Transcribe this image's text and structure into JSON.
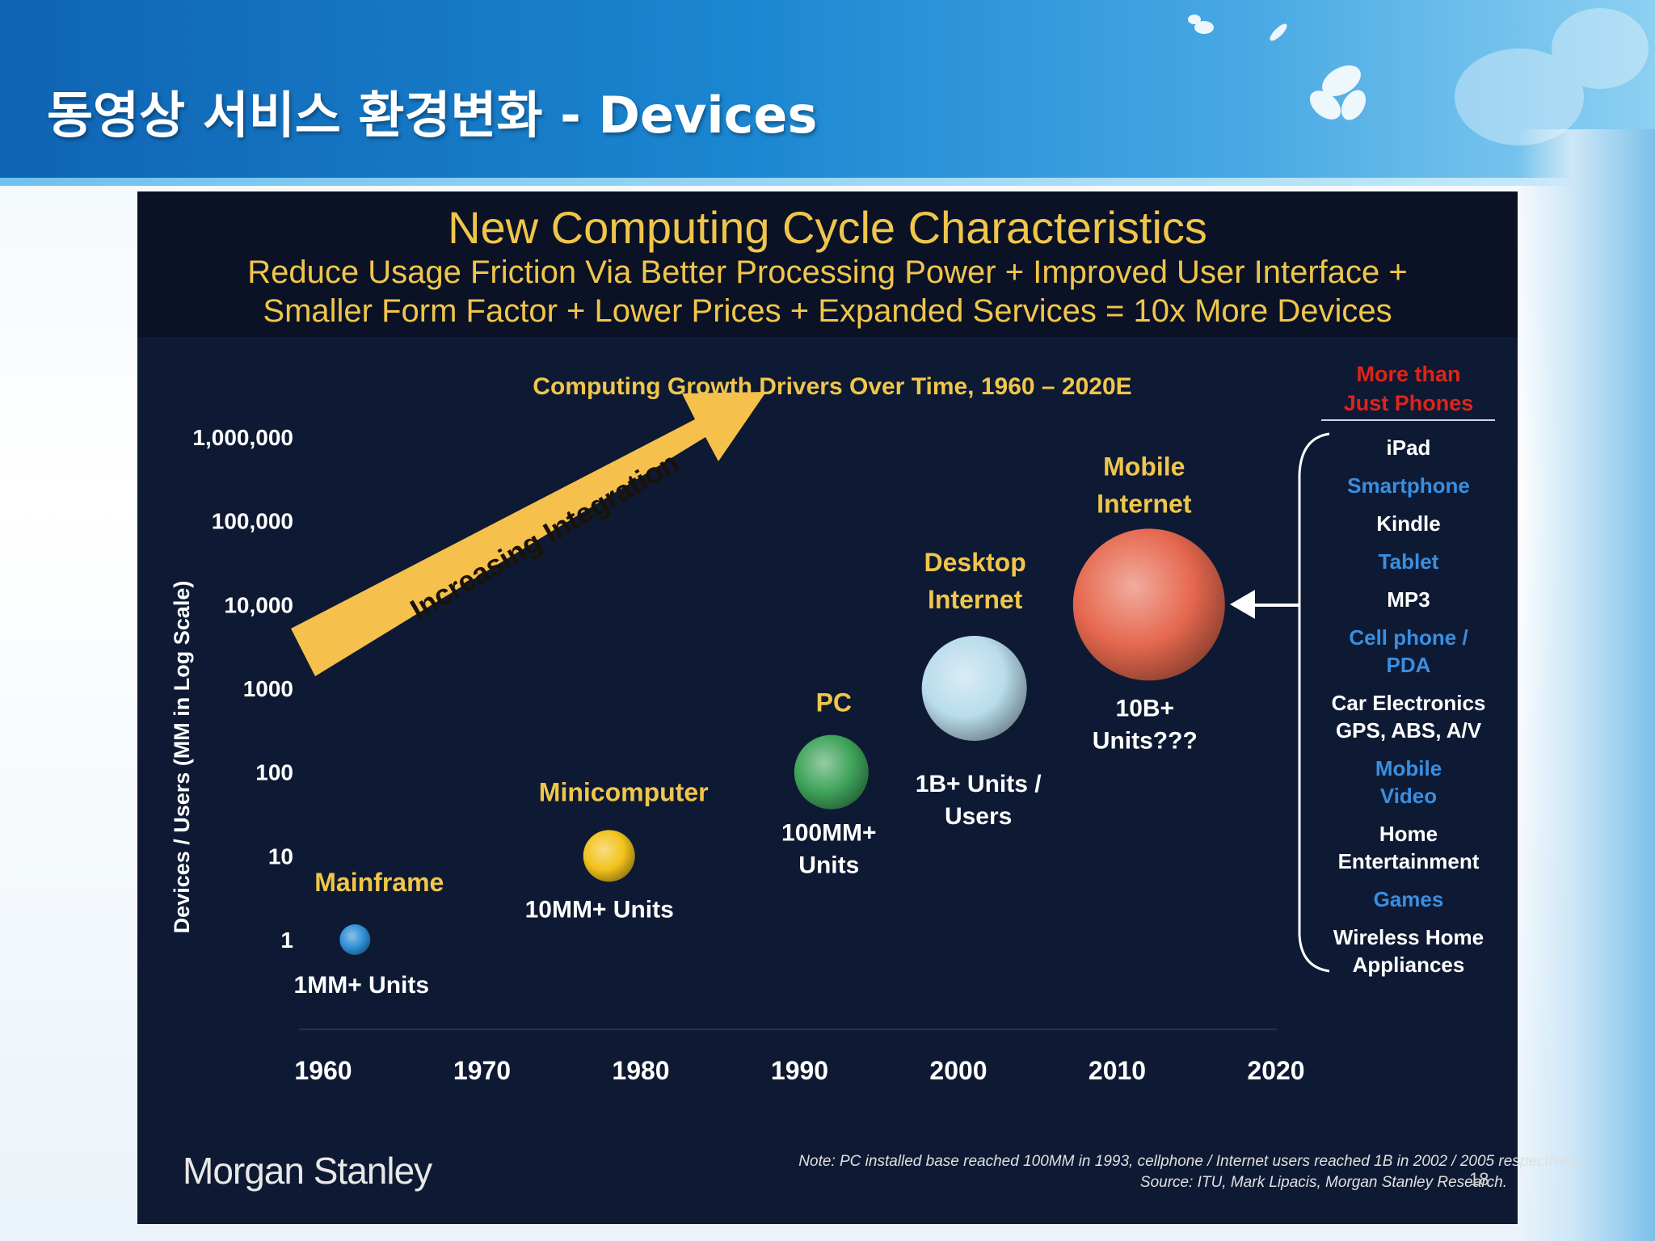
{
  "slide_title": "동영상 서비스 환경변화 - Devices",
  "chart_data": {
    "type": "scatter",
    "title": "New Computing Cycle Characteristics",
    "subtitle_lines": [
      "Reduce Usage Friction Via Better Processing Power + Improved User Interface +",
      "Smaller Form Factor + Lower Prices + Expanded Services = 10x More Devices"
    ],
    "chart_title": "Computing Growth Drivers Over Time, 1960 – 2020E",
    "ylabel": "Devices / Users (MM in Log Scale)",
    "y_scale": "log",
    "y_ticks": [
      "1,000,000",
      "100,000",
      "10,000",
      "1000",
      "100",
      "10",
      "1"
    ],
    "x_ticks": [
      "1960",
      "1970",
      "1980",
      "1990",
      "2000",
      "2010",
      "2020"
    ],
    "xlim": [
      1960,
      2020
    ],
    "arrow_label": "Increasing Integration",
    "points": [
      {
        "name": "Mainframe",
        "year": 1962,
        "value": 1,
        "units": "1MM+ Units",
        "color": "#2f8fd6"
      },
      {
        "name": "Minicomputer",
        "year": 1978,
        "value": 10,
        "units": "10MM+ Units",
        "color": "#f2c21c"
      },
      {
        "name": "PC",
        "year": 1992,
        "value": 100,
        "units": "100MM+\nUnits",
        "color": "#3fa35a"
      },
      {
        "name": "Desktop\nInternet",
        "year": 2001,
        "value": 1000,
        "units": "1B+ Units /\nUsers",
        "color": "#b9dcec"
      },
      {
        "name": "Mobile\nInternet",
        "year": 2012,
        "value": 10000,
        "units": "10B+\nUnits???",
        "color": "#e6684f"
      }
    ]
  },
  "sidebar": {
    "title": "More than\nJust Phones",
    "items": [
      {
        "label": "iPad",
        "tone": "w"
      },
      {
        "label": "Smartphone",
        "tone": "b"
      },
      {
        "label": "Kindle",
        "tone": "w"
      },
      {
        "label": "Tablet",
        "tone": "b"
      },
      {
        "label": "MP3",
        "tone": "w"
      },
      {
        "label": "Cell phone /\nPDA",
        "tone": "b"
      },
      {
        "label": "Car Electronics\nGPS, ABS, A/V",
        "tone": "w"
      },
      {
        "label": "Mobile\nVideo",
        "tone": "b"
      },
      {
        "label": "Home\nEntertainment",
        "tone": "w"
      },
      {
        "label": "Games",
        "tone": "b"
      },
      {
        "label": "Wireless Home\nAppliances",
        "tone": "w"
      }
    ]
  },
  "footer": {
    "logo": "Morgan Stanley",
    "note_line1": "Note: PC installed base reached 100MM in 1993, cellphone / Internet users reached 1B in 2002 / 2005 respectively;",
    "note_line2": "Source: ITU, Mark Lipacis, Morgan Stanley Research.",
    "page_number": "18"
  },
  "colors": {
    "panel_bg": "#0e1a33",
    "gold": "#f0c64a",
    "arrow": "#f6c04c",
    "red_title": "#e0231b",
    "blue_item": "#3a8ee0"
  }
}
